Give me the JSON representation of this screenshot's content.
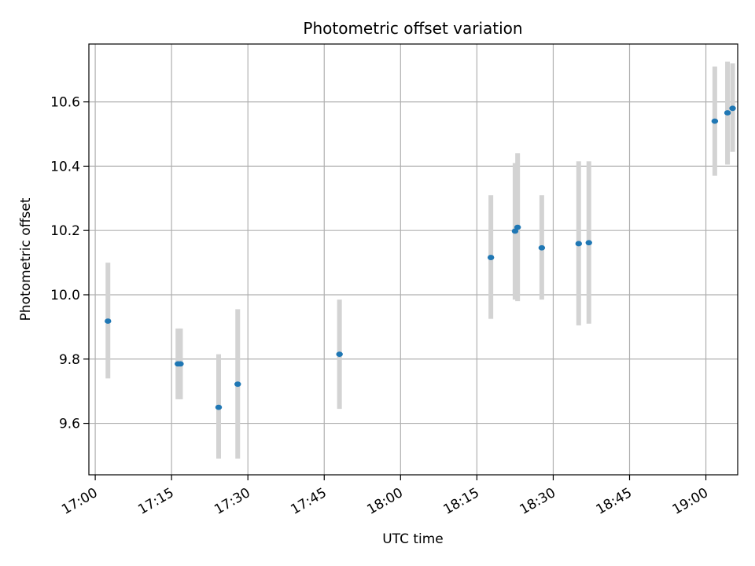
{
  "chart_data": {
    "type": "scatter",
    "title": "Photometric offset variation",
    "xlabel": "UTC time",
    "ylabel": "Photometric offset",
    "xlim": [
      "16:58:45",
      "19:06:15"
    ],
    "ylim": [
      9.44,
      10.78
    ],
    "x_ticks": [
      "17:00",
      "17:15",
      "17:30",
      "17:45",
      "18:00",
      "18:15",
      "18:30",
      "18:45",
      "19:00"
    ],
    "y_ticks": [
      9.6,
      9.8,
      10.0,
      10.2,
      10.4,
      10.6
    ],
    "grid": true,
    "series": [
      {
        "marker_color": "#1f77b4",
        "errorbar_color": "#d3d3d3",
        "points": [
          {
            "x": "17:02:30",
            "y": 9.918,
            "ylow": 9.74,
            "yhigh": 10.1
          },
          {
            "x": "17:16:15",
            "y": 9.785,
            "ylow": 9.675,
            "yhigh": 9.895
          },
          {
            "x": "17:16:45",
            "y": 9.785,
            "ylow": 9.675,
            "yhigh": 9.895
          },
          {
            "x": "17:24:15",
            "y": 9.65,
            "ylow": 9.49,
            "yhigh": 9.815
          },
          {
            "x": "17:28:00",
            "y": 9.722,
            "ylow": 9.49,
            "yhigh": 9.955
          },
          {
            "x": "17:48:00",
            "y": 9.815,
            "ylow": 9.645,
            "yhigh": 9.985
          },
          {
            "x": "18:17:45",
            "y": 10.116,
            "ylow": 9.925,
            "yhigh": 10.31
          },
          {
            "x": "18:22:30",
            "y": 10.198,
            "ylow": 9.985,
            "yhigh": 10.41
          },
          {
            "x": "18:23:00",
            "y": 10.21,
            "ylow": 9.98,
            "yhigh": 10.44
          },
          {
            "x": "18:27:45",
            "y": 10.146,
            "ylow": 9.985,
            "yhigh": 10.31
          },
          {
            "x": "18:35:00",
            "y": 10.159,
            "ylow": 9.905,
            "yhigh": 10.415
          },
          {
            "x": "18:37:00",
            "y": 10.162,
            "ylow": 9.91,
            "yhigh": 10.415
          },
          {
            "x": "19:01:45",
            "y": 10.54,
            "ylow": 10.37,
            "yhigh": 10.71
          },
          {
            "x": "19:04:15",
            "y": 10.566,
            "ylow": 10.405,
            "yhigh": 10.725
          },
          {
            "x": "19:05:15",
            "y": 10.58,
            "ylow": 10.445,
            "yhigh": 10.72
          }
        ]
      }
    ]
  }
}
